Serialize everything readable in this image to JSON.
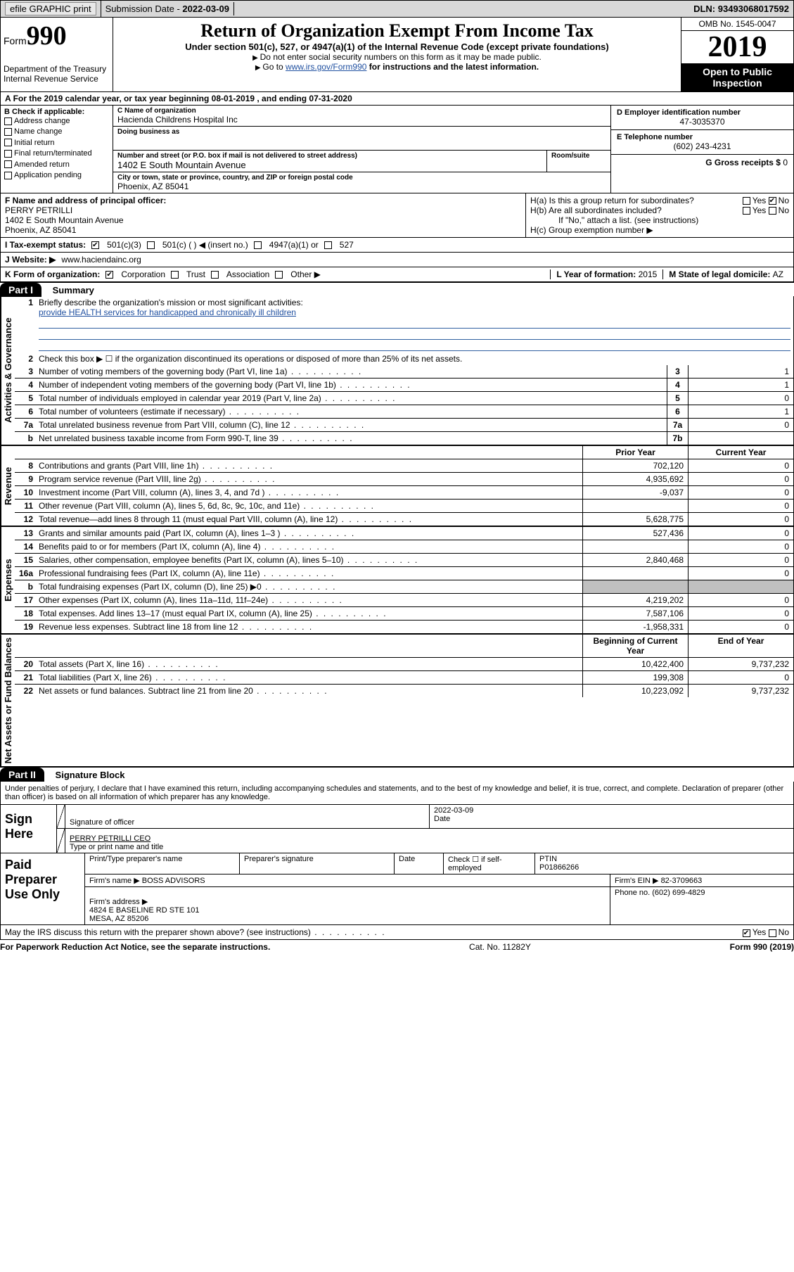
{
  "topbar": {
    "efile": "efile GRAPHIC print",
    "submission_label": "Submission Date - ",
    "submission_date": "2022-03-09",
    "dln_label": "DLN: ",
    "dln": "93493068017592"
  },
  "header": {
    "form_label": "Form",
    "form_number": "990",
    "dept": "Department of the Treasury\nInternal Revenue Service",
    "title": "Return of Organization Exempt From Income Tax",
    "subtitle": "Under section 501(c), 527, or 4947(a)(1) of the Internal Revenue Code (except private foundations)",
    "note1": "Do not enter social security numbers on this form as it may be made public.",
    "note2_pre": "Go to ",
    "note2_link": "www.irs.gov/Form990",
    "note2_post": " for instructions and the latest information.",
    "omb": "OMB No. 1545-0047",
    "year": "2019",
    "inspection": "Open to Public Inspection"
  },
  "line_a": "For the 2019 calendar year, or tax year beginning 08-01-2019   , and ending 07-31-2020",
  "section_b": {
    "label": "B Check if applicable:",
    "items": [
      "Address change",
      "Name change",
      "Initial return",
      "Final return/terminated",
      "Amended return",
      "Application pending"
    ]
  },
  "section_c": {
    "name_label": "C Name of organization",
    "name": "Hacienda Childrens Hospital Inc",
    "dba_label": "Doing business as",
    "dba": "",
    "street_label": "Number and street (or P.O. box if mail is not delivered to street address)",
    "street": "1402 E South Mountain Avenue",
    "room_label": "Room/suite",
    "city_label": "City or town, state or province, country, and ZIP or foreign postal code",
    "city": "Phoenix, AZ  85041"
  },
  "section_d": {
    "ein_label": "D Employer identification number",
    "ein": "47-3035370",
    "phone_label": "E Telephone number",
    "phone": "(602) 243-4231",
    "gross_label": "G Gross receipts $ ",
    "gross": "0"
  },
  "section_f": {
    "label": "F Name and address of principal officer:",
    "name": "PERRY PETRILLI",
    "addr1": "1402 E South Mountain Avenue",
    "addr2": "Phoenix, AZ  85041"
  },
  "section_h": {
    "ha_label": "H(a)  Is this a group return for subordinates?",
    "ha_yes": "Yes",
    "ha_no": "No",
    "hb_label": "H(b)  Are all subordinates included?",
    "hb_note": "If \"No,\" attach a list. (see instructions)",
    "hc_label": "H(c)  Group exemption number ▶"
  },
  "section_i": {
    "label": "I   Tax-exempt status:",
    "opts": [
      "501(c)(3)",
      "501(c) (  ) ◀ (insert no.)",
      "4947(a)(1) or",
      "527"
    ]
  },
  "section_j": {
    "label": "J   Website: ▶",
    "value": "www.haciendainc.org"
  },
  "section_k": {
    "label": "K Form of organization:",
    "opts": [
      "Corporation",
      "Trust",
      "Association",
      "Other ▶"
    ],
    "l_label": "L Year of formation: ",
    "l_value": "2015",
    "m_label": "M State of legal domicile: ",
    "m_value": "AZ"
  },
  "parts": {
    "p1_header": "Part I",
    "p1_title": "Summary",
    "p2_header": "Part II",
    "p2_title": "Signature Block"
  },
  "side_labels": {
    "gov": "Activities & Governance",
    "rev": "Revenue",
    "exp": "Expenses",
    "net": "Net Assets or Fund Balances"
  },
  "summary": {
    "q1_label": "Briefly describe the organization's mission or most significant activities:",
    "q1_text": "provide HEALTH services for handicapped and chronically ill children",
    "q2": "Check this box ▶ ☐  if the organization discontinued its operations or disposed of more than 25% of its net assets.",
    "rows_gov": [
      {
        "n": "3",
        "d": "Number of voting members of the governing body (Part VI, line 1a)",
        "b": "3",
        "v": "1"
      },
      {
        "n": "4",
        "d": "Number of independent voting members of the governing body (Part VI, line 1b)",
        "b": "4",
        "v": "1"
      },
      {
        "n": "5",
        "d": "Total number of individuals employed in calendar year 2019 (Part V, line 2a)",
        "b": "5",
        "v": "0"
      },
      {
        "n": "6",
        "d": "Total number of volunteers (estimate if necessary)",
        "b": "6",
        "v": "1"
      },
      {
        "n": "7a",
        "d": "Total unrelated business revenue from Part VIII, column (C), line 12",
        "b": "7a",
        "v": "0"
      },
      {
        "n": "b",
        "d": "Net unrelated business taxable income from Form 990-T, line 39",
        "b": "7b",
        "v": ""
      }
    ],
    "col_headers": {
      "prior": "Prior Year",
      "current": "Current Year",
      "beg": "Beginning of Current Year",
      "end": "End of Year"
    },
    "rows_rev": [
      {
        "n": "8",
        "d": "Contributions and grants (Part VIII, line 1h)",
        "p": "702,120",
        "c": "0"
      },
      {
        "n": "9",
        "d": "Program service revenue (Part VIII, line 2g)",
        "p": "4,935,692",
        "c": "0"
      },
      {
        "n": "10",
        "d": "Investment income (Part VIII, column (A), lines 3, 4, and 7d )",
        "p": "-9,037",
        "c": "0"
      },
      {
        "n": "11",
        "d": "Other revenue (Part VIII, column (A), lines 5, 6d, 8c, 9c, 10c, and 11e)",
        "p": "",
        "c": "0"
      },
      {
        "n": "12",
        "d": "Total revenue—add lines 8 through 11 (must equal Part VIII, column (A), line 12)",
        "p": "5,628,775",
        "c": "0"
      }
    ],
    "rows_exp": [
      {
        "n": "13",
        "d": "Grants and similar amounts paid (Part IX, column (A), lines 1–3 )",
        "p": "527,436",
        "c": "0"
      },
      {
        "n": "14",
        "d": "Benefits paid to or for members (Part IX, column (A), line 4)",
        "p": "",
        "c": "0"
      },
      {
        "n": "15",
        "d": "Salaries, other compensation, employee benefits (Part IX, column (A), lines 5–10)",
        "p": "2,840,468",
        "c": "0"
      },
      {
        "n": "16a",
        "d": "Professional fundraising fees (Part IX, column (A), line 11e)",
        "p": "",
        "c": "0"
      },
      {
        "n": "b",
        "d": "Total fundraising expenses (Part IX, column (D), line 25) ▶0",
        "p": "shade",
        "c": "shade"
      },
      {
        "n": "17",
        "d": "Other expenses (Part IX, column (A), lines 11a–11d, 11f–24e)",
        "p": "4,219,202",
        "c": "0"
      },
      {
        "n": "18",
        "d": "Total expenses. Add lines 13–17 (must equal Part IX, column (A), line 25)",
        "p": "7,587,106",
        "c": "0"
      },
      {
        "n": "19",
        "d": "Revenue less expenses. Subtract line 18 from line 12",
        "p": "-1,958,331",
        "c": "0"
      }
    ],
    "rows_net": [
      {
        "n": "20",
        "d": "Total assets (Part X, line 16)",
        "p": "10,422,400",
        "c": "9,737,232"
      },
      {
        "n": "21",
        "d": "Total liabilities (Part X, line 26)",
        "p": "199,308",
        "c": "0"
      },
      {
        "n": "22",
        "d": "Net assets or fund balances. Subtract line 21 from line 20",
        "p": "10,223,092",
        "c": "9,737,232"
      }
    ]
  },
  "declaration": "Under penalties of perjury, I declare that I have examined this return, including accompanying schedules and statements, and to the best of my knowledge and belief, it is true, correct, and complete. Declaration of preparer (other than officer) is based on all information of which preparer has any knowledge.",
  "sign": {
    "label": "Sign Here",
    "sig_label": "Signature of officer",
    "date_label": "Date",
    "date": "2022-03-09",
    "name": "PERRY PETRILLI  CEO",
    "name_label": "Type or print name and title"
  },
  "preparer": {
    "label": "Paid Preparer Use Only",
    "h_print": "Print/Type preparer's name",
    "h_sig": "Preparer's signature",
    "h_date": "Date",
    "h_check": "Check ☐ if self-employed",
    "h_ptin": "PTIN",
    "ptin": "P01866266",
    "firm_name_label": "Firm's name    ▶",
    "firm_name": "BOSS ADVISORS",
    "firm_ein_label": "Firm's EIN ▶",
    "firm_ein": "82-3709663",
    "firm_addr_label": "Firm's address ▶",
    "firm_addr": "4824 E BASELINE RD STE 101\nMESA, AZ  85206",
    "phone_label": "Phone no. ",
    "phone": "(602) 699-4829"
  },
  "discuss": {
    "text": "May the IRS discuss this return with the preparer shown above? (see instructions)",
    "yes": "Yes",
    "no": "No"
  },
  "footer": {
    "left": "For Paperwork Reduction Act Notice, see the separate instructions.",
    "center": "Cat. No. 11282Y",
    "right": "Form 990 (2019)"
  }
}
